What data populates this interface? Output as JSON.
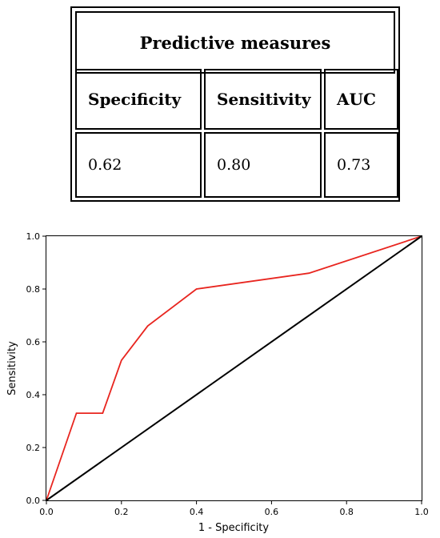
{
  "table": {
    "title": "Predictive measures",
    "headers": [
      "Specificity",
      "Sensitivity",
      "AUC"
    ],
    "values": [
      "0.62",
      "0.80",
      "0.73"
    ]
  },
  "chart_data": {
    "type": "line",
    "title": "",
    "xlabel": "1 - Specificity",
    "ylabel": "Sensitivity",
    "xlim": [
      0.0,
      1.0
    ],
    "ylim": [
      0.0,
      1.0
    ],
    "x_ticks": [
      "0.0",
      "0.2",
      "0.4",
      "0.6",
      "0.8",
      "1.0"
    ],
    "y_ticks": [
      "0.0",
      "0.2",
      "0.4",
      "0.6",
      "0.8",
      "1.0"
    ],
    "grid": false,
    "legend": "none",
    "series": [
      {
        "color": "#e8251f",
        "x": [
          0.0,
          0.08,
          0.15,
          0.2,
          0.27,
          0.4,
          0.7,
          1.0
        ],
        "y": [
          0.0,
          0.33,
          0.33,
          0.53,
          0.66,
          0.8,
          0.86,
          1.0
        ]
      },
      {
        "color": "#000000",
        "x": [
          0.0,
          1.0
        ],
        "y": [
          0.0,
          1.0
        ]
      }
    ]
  }
}
